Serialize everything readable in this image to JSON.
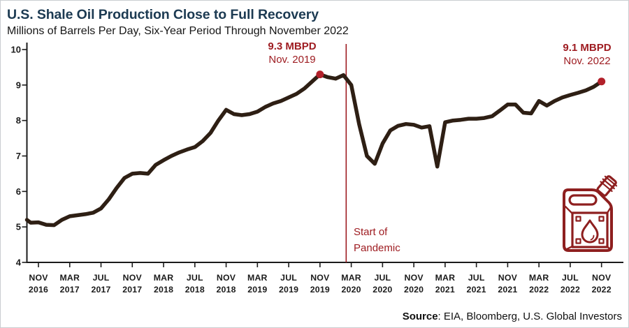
{
  "header": {
    "title": "U.S. Shale Oil Production Close to Full Recovery",
    "subtitle": "Millions of Barrels Per Day, Six-Year Period Through November 2022"
  },
  "annotations": {
    "peak2019": {
      "value": "9.3 MBPD",
      "date": "Nov. 2019"
    },
    "peak2022": {
      "value": "9.1 MBPD",
      "date": "Nov. 2022"
    },
    "pandemic": {
      "line1": "Start of",
      "line2": "Pandemic"
    }
  },
  "source": {
    "label": "Source",
    "text": ": EIA, Bloomberg, U.S. Global Investors"
  },
  "colors": {
    "title_navy": "#1c3a52",
    "ink": "#1b1b1b",
    "line": "#2e1f14",
    "marker_red": "#b2202a",
    "accent_red": "#9e1c21",
    "icon_red": "#8e1f1f",
    "frame_border": "#c9cdd1"
  },
  "chart_data": {
    "type": "line",
    "title": "U.S. Shale Oil Production Close to Full Recovery",
    "ylabel": "Millions of Barrels Per Day",
    "unit": "MBPD",
    "ylim": [
      4,
      10
    ],
    "y_ticks": [
      4,
      5,
      6,
      7,
      8,
      9,
      10
    ],
    "grid": false,
    "legend": "none",
    "months": [
      "Sep 2016",
      "Oct 2016",
      "Nov 2016",
      "Dec 2016",
      "Jan 2017",
      "Feb 2017",
      "Mar 2017",
      "Apr 2017",
      "May 2017",
      "Jun 2017",
      "Jul 2017",
      "Aug 2017",
      "Sep 2017",
      "Oct 2017",
      "Nov 2017",
      "Dec 2017",
      "Jan 2018",
      "Feb 2018",
      "Mar 2018",
      "Apr 2018",
      "May 2018",
      "Jun 2018",
      "Jul 2018",
      "Aug 2018",
      "Sep 2018",
      "Oct 2018",
      "Nov 2018",
      "Dec 2018",
      "Jan 2019",
      "Feb 2019",
      "Mar 2019",
      "Apr 2019",
      "May 2019",
      "Jun 2019",
      "Jul 2019",
      "Aug 2019",
      "Sep 2019",
      "Oct 2019",
      "Nov 2019",
      "Dec 2019",
      "Jan 2020",
      "Feb 2020",
      "Mar 2020",
      "Apr 2020",
      "May 2020",
      "Jun 2020",
      "Jul 2020",
      "Aug 2020",
      "Sep 2020",
      "Oct 2020",
      "Nov 2020",
      "Dec 2020",
      "Jan 2021",
      "Feb 2021",
      "Mar 2021",
      "Apr 2021",
      "May 2021",
      "Jun 2021",
      "Jul 2021",
      "Aug 2021",
      "Sep 2021",
      "Oct 2021",
      "Nov 2021",
      "Dec 2021",
      "Jan 2022",
      "Feb 2022",
      "Mar 2022",
      "Apr 2022",
      "May 2022",
      "Jun 2022",
      "Jul 2022",
      "Aug 2022",
      "Sep 2022",
      "Oct 2022",
      "Nov 2022"
    ],
    "values": [
      5.2,
      5.12,
      5.13,
      5.06,
      5.05,
      5.2,
      5.3,
      5.33,
      5.36,
      5.4,
      5.52,
      5.78,
      6.1,
      6.38,
      6.5,
      6.52,
      6.5,
      6.75,
      6.88,
      7.0,
      7.1,
      7.18,
      7.25,
      7.42,
      7.65,
      8.0,
      8.3,
      8.18,
      8.15,
      8.18,
      8.25,
      8.38,
      8.48,
      8.55,
      8.65,
      8.75,
      8.9,
      9.1,
      9.3,
      9.22,
      9.18,
      9.28,
      9.0,
      7.9,
      7.0,
      6.78,
      7.35,
      7.72,
      7.85,
      7.9,
      7.88,
      7.8,
      7.84,
      6.7,
      7.95,
      8.0,
      8.02,
      8.05,
      8.05,
      8.07,
      8.12,
      8.28,
      8.45,
      8.45,
      8.22,
      8.2,
      8.55,
      8.42,
      8.55,
      8.65,
      8.72,
      8.78,
      8.85,
      8.95,
      9.1
    ],
    "x_tick_start_index": 2,
    "x_tick_step": 4,
    "markers": [
      {
        "month": "Nov 2019",
        "value": 9.3,
        "label": "9.3 MBPD"
      },
      {
        "month": "Nov 2022",
        "value": 9.1,
        "label": "9.1 MBPD"
      }
    ],
    "vline": {
      "between": [
        "Feb 2020",
        "Mar 2020"
      ],
      "label": "Start of Pandemic"
    }
  }
}
